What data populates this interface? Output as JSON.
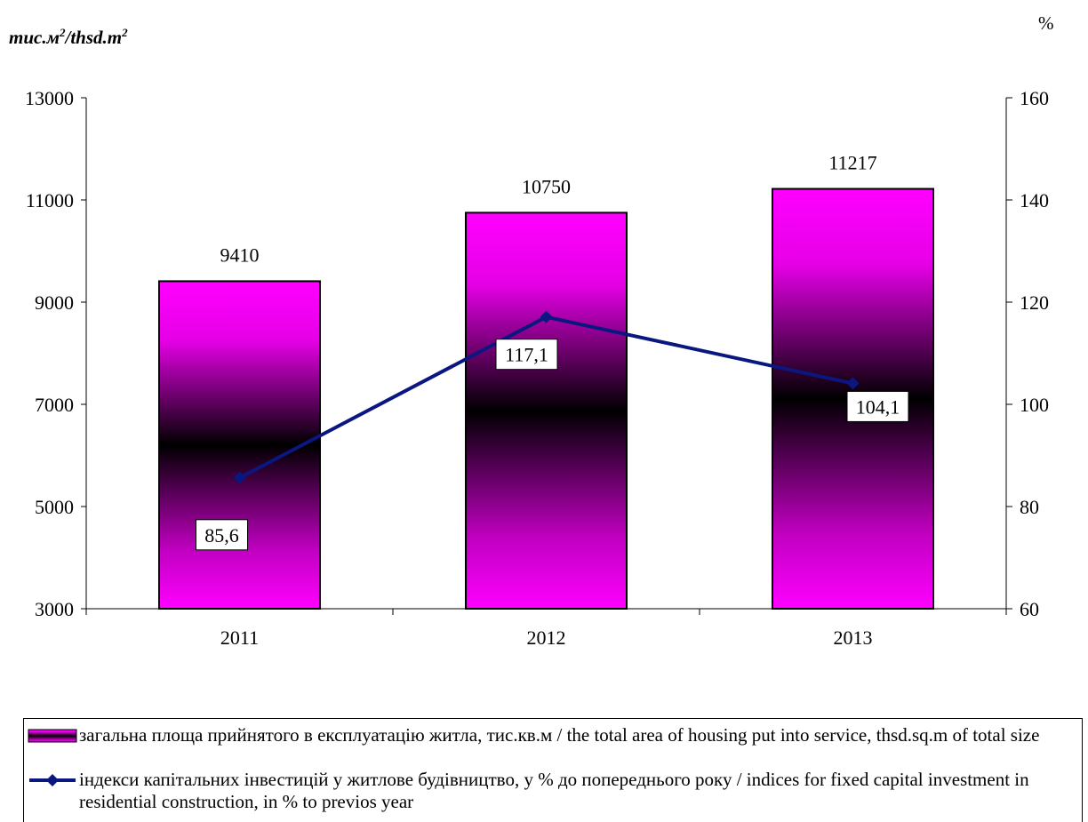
{
  "chart_data": {
    "type": "bar",
    "categories": [
      "2011",
      "2012",
      "2013"
    ],
    "series": [
      {
        "name": "загальна площа прийнятого в експлуатацію житла, тис.кв.м / the total area of housing put into service, thsd.sq.m of total size",
        "type": "bar",
        "axis": "left",
        "values": [
          9410,
          10750,
          11217
        ],
        "labels": [
          "9410",
          "10750",
          "11217"
        ],
        "color": "#ff00ff"
      },
      {
        "name": "індекси капітальних інвестицій у житлове будівництво, у % до попереднього року / indices for fixed capital investment in residential construction, in % to previos year",
        "type": "line",
        "axis": "right",
        "values": [
          85.6,
          117.1,
          104.1
        ],
        "labels": [
          "85,6",
          "117,1",
          "104,1"
        ],
        "color": "#0b1780"
      }
    ],
    "y_left": {
      "unit_main": "тис.м",
      "unit_sup1": "2",
      "unit_mid": "/thsd.m",
      "unit_sup2": "2",
      "range": [
        3000,
        13000
      ],
      "ticks": [
        "3000",
        "5000",
        "7000",
        "9000",
        "11000",
        "13000"
      ]
    },
    "y_right": {
      "unit": "%",
      "range": [
        60,
        160
      ],
      "ticks": [
        "60",
        "80",
        "100",
        "120",
        "140",
        "160"
      ]
    },
    "grid": false,
    "legend_position": "bottom"
  }
}
